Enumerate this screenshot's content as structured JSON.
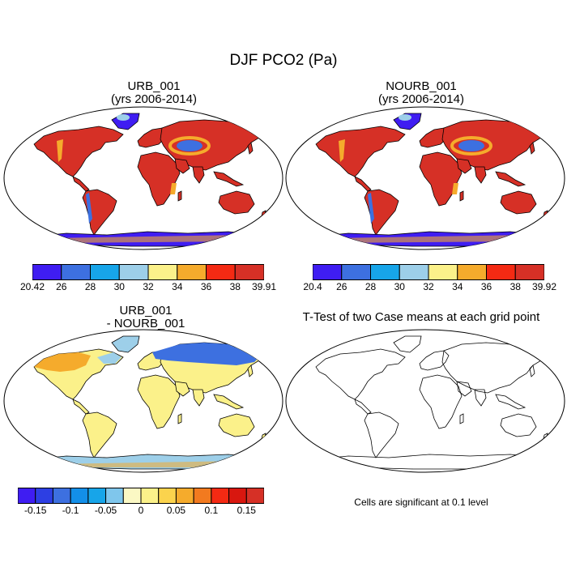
{
  "title": "DJF PCO2 (Pa)",
  "panels": [
    {
      "id": "urb",
      "title_line1": "URB_001",
      "title_line2": "(yrs 2006-2014)",
      "colorbar": {
        "colors": [
          "#3f1df2",
          "#3d70e0",
          "#17a5e9",
          "#9dcfe9",
          "#fbf18a",
          "#f5ab2c",
          "#f42a13",
          "#d63026"
        ],
        "tick_labels": [
          "20.42",
          "26",
          "28",
          "30",
          "32",
          "34",
          "36",
          "38",
          "39.91"
        ]
      }
    },
    {
      "id": "nourb",
      "title_line1": "NOURB_001",
      "title_line2": "(yrs 2006-2014)",
      "colorbar": {
        "colors": [
          "#3f1df2",
          "#3d70e0",
          "#17a5e9",
          "#9dcfe9",
          "#fbf18a",
          "#f5ab2c",
          "#f42a13",
          "#d63026"
        ],
        "tick_labels": [
          "20.4",
          "26",
          "28",
          "30",
          "32",
          "34",
          "36",
          "38",
          "39.92"
        ]
      }
    },
    {
      "id": "diff",
      "title_line1": "URB_001",
      "title_line2": "- NOURB_001",
      "colorbar": {
        "colors": [
          "#3f1df2",
          "#2d3fe3",
          "#3d70e0",
          "#138fe8",
          "#17a5e9",
          "#7fc6ec",
          "#fbf8c4",
          "#fbf18a",
          "#fbd34d",
          "#f5ab2c",
          "#f27a1f",
          "#f42a13",
          "#d8170f",
          "#d63026"
        ],
        "tick_labels": [
          "-0.15",
          "-0.1",
          "-0.05",
          "0",
          "0.05",
          "0.1",
          "0.15"
        ]
      }
    },
    {
      "id": "ttest",
      "title_line1": "T-Test of two Case means at each grid point",
      "title_line2": "",
      "note": "Cells are significant at 0.1 level"
    }
  ],
  "map_fill": {
    "urb": {
      "land": "#d63026",
      "desert": "#f5ab2c",
      "cold": "#3d70e0",
      "ice": "#3f1df2"
    },
    "nourb": {
      "land": "#d63026",
      "desert": "#f5ab2c",
      "cold": "#3d70e0",
      "ice": "#3f1df2"
    },
    "diff": {
      "land": "#fbf18a",
      "north": "#3d70e0",
      "warm": "#f5ab2c",
      "ice": "#9dcfe9"
    },
    "ttest": {
      "land": "none"
    }
  }
}
